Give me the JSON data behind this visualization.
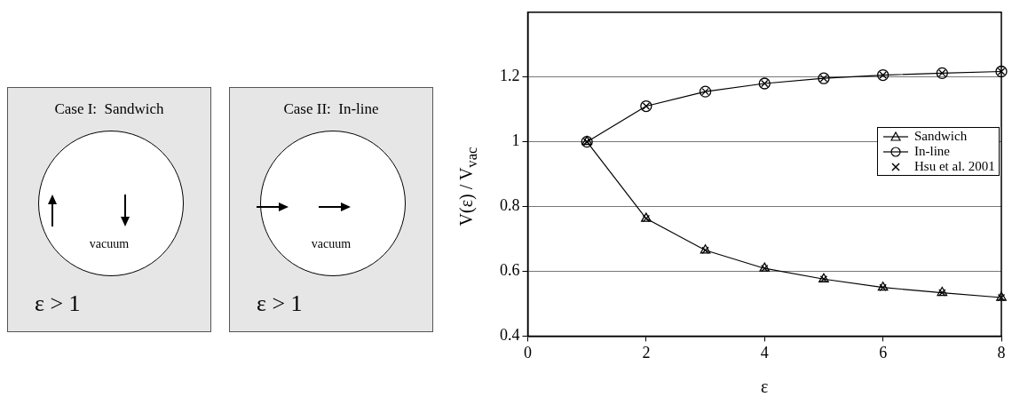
{
  "chart_data": [
    {
      "type": "other",
      "title": "Case I:  Sandwich",
      "annotations": [
        "vacuum",
        "ε > 1"
      ]
    },
    {
      "type": "other",
      "title": "Case II:  In-line",
      "annotations": [
        "vacuum",
        "ε > 1"
      ]
    },
    {
      "type": "line",
      "xlabel": "ε",
      "ylabel": "V(ε) / V$_{vac}$",
      "xlim": [
        0,
        8
      ],
      "xticks": [
        0,
        2,
        4,
        6,
        8
      ],
      "ylim": [
        0.4,
        1.4
      ],
      "yticks": [
        0.4,
        0.6,
        0.8,
        1,
        1.2
      ],
      "grid": "y",
      "legend": "right",
      "series": [
        {
          "name": "Sandwich",
          "color": "#000000",
          "marker": "triangle",
          "x": [
            1,
            2,
            3,
            4,
            5,
            6,
            7,
            8
          ],
          "values": [
            1,
            0.763,
            0.665,
            0.609,
            0.576,
            0.55,
            0.534,
            0.519
          ]
        },
        {
          "name": "In-line",
          "color": "#000000",
          "marker": "circle",
          "x": [
            1,
            2,
            3,
            4,
            5,
            6,
            7,
            8
          ],
          "values": [
            1,
            1.11,
            1.155,
            1.18,
            1.196,
            1.206,
            1.212,
            1.217
          ]
        },
        {
          "name": "Hsu et al. 2001",
          "type": "scatter",
          "color": "#000000",
          "marker": "cross",
          "x": [
            1,
            2,
            3,
            4,
            5,
            6,
            7,
            8,
            1,
            2,
            3,
            4,
            5,
            6,
            7,
            8
          ],
          "values": [
            1,
            0.763,
            0.665,
            0.609,
            0.576,
            0.55,
            0.534,
            0.519,
            1,
            1.11,
            1.155,
            1.18,
            1.196,
            1.206,
            1.212,
            1.217
          ]
        }
      ]
    }
  ]
}
